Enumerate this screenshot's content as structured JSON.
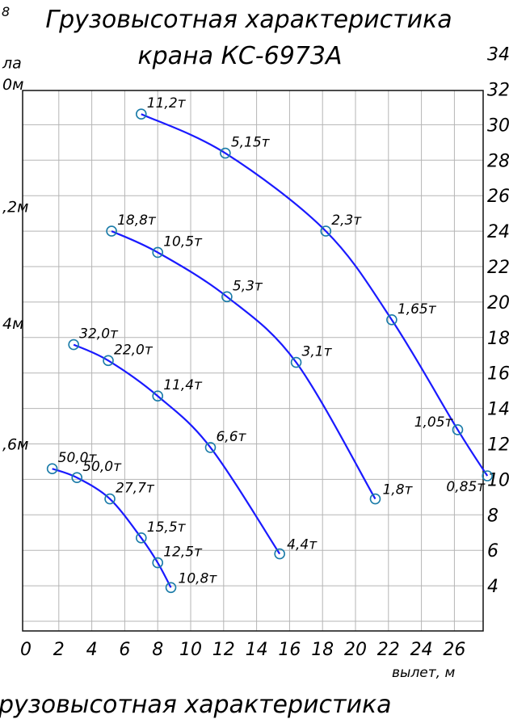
{
  "chart_data": {
    "type": "line",
    "page_marker": "8",
    "title_line1": "Грузовысотная характеристика",
    "title_line2": "крана КС-6973А",
    "xlabel": "вылет, м",
    "xlim": [
      0,
      28
    ],
    "ylim": [
      2,
      34
    ],
    "x_ticks": [
      0,
      2,
      4,
      6,
      8,
      10,
      12,
      14,
      16,
      18,
      20,
      22,
      24,
      26
    ],
    "y_ticks": [
      4,
      6,
      8,
      10,
      12,
      14,
      16,
      18,
      20,
      22,
      24,
      26,
      28,
      30,
      32,
      34
    ],
    "grid": true,
    "left_labels": [
      {
        "text": "ла",
        "y": 33.5
      },
      {
        "text": "0м",
        "y": 32.3
      },
      {
        "text": ",2м",
        "y": 25.4
      },
      {
        "text": "4м",
        "y": 18.8
      },
      {
        "text": ",6м",
        "y": 12.0
      }
    ],
    "bottom_caption": "рузовысотная характеристика",
    "series": [
      {
        "points": [
          {
            "x": 7.0,
            "y": 30.6,
            "label": "11,2т"
          },
          {
            "x": 12.1,
            "y": 28.4,
            "label": "5,15т"
          },
          {
            "x": 18.2,
            "y": 24.0,
            "label": "2,3т"
          },
          {
            "x": 22.2,
            "y": 19.0,
            "label": "1,65т"
          },
          {
            "x": 26.2,
            "y": 12.8,
            "label": "1,05т"
          },
          {
            "x": 28.0,
            "y": 10.2,
            "label": "0,85т"
          }
        ]
      },
      {
        "points": [
          {
            "x": 5.2,
            "y": 24.0,
            "label": "18,8т"
          },
          {
            "x": 8.0,
            "y": 22.8,
            "label": "10,5т"
          },
          {
            "x": 12.2,
            "y": 20.3,
            "label": "5,3т"
          },
          {
            "x": 16.4,
            "y": 16.6,
            "label": "3,1т"
          },
          {
            "x": 21.2,
            "y": 8.9,
            "label": "1,8т"
          }
        ]
      },
      {
        "points": [
          {
            "x": 2.9,
            "y": 17.6,
            "label": "32,0т"
          },
          {
            "x": 5.0,
            "y": 16.7,
            "label": "22,0т"
          },
          {
            "x": 8.0,
            "y": 14.7,
            "label": "11,4т"
          },
          {
            "x": 11.2,
            "y": 11.8,
            "label": "6,6т"
          },
          {
            "x": 15.4,
            "y": 5.8,
            "label": "4,4т"
          }
        ]
      },
      {
        "points": [
          {
            "x": 1.6,
            "y": 10.6,
            "label": "50,0т"
          },
          {
            "x": 3.1,
            "y": 10.1,
            "label": "50,0т"
          },
          {
            "x": 5.1,
            "y": 8.9,
            "label": "27,7т"
          },
          {
            "x": 7.0,
            "y": 6.7,
            "label": "15,5т"
          },
          {
            "x": 8.0,
            "y": 5.3,
            "label": "12,5т"
          },
          {
            "x": 8.8,
            "y": 3.9,
            "label": "10,8т"
          }
        ]
      }
    ],
    "colors": {
      "curve": "#1a1aff",
      "marker": "#1a7ba8",
      "grid": "#b5b5b5"
    }
  }
}
